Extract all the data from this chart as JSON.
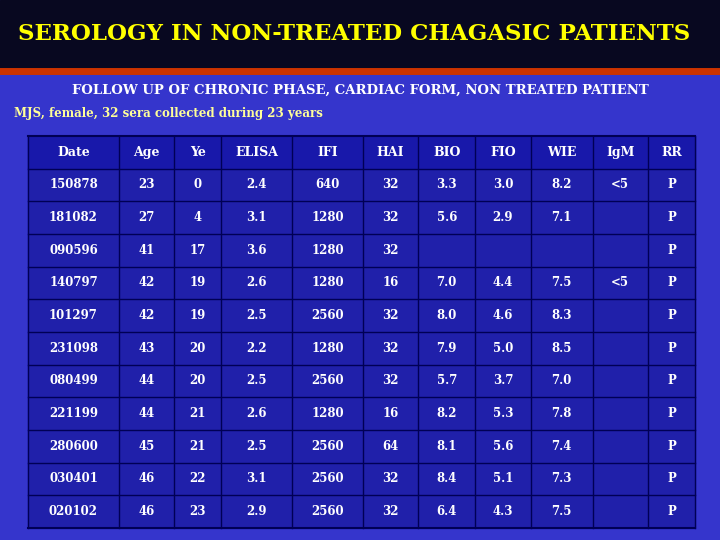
{
  "title": "SEROLOGY IN NON-TREATED CHAGASIC PATIENTS",
  "subtitle": "FOLLOW UP OF CHRONIC PHASE, CARDIAC FORM, NON TREATED PATIENT",
  "caption": "MJS, female, 32 sera collected during 23 years",
  "bg_top_color": "#080820",
  "bg_bottom_color": "#3535cc",
  "title_color": "#ffff00",
  "subtitle_color": "#ffffff",
  "caption_color": "#ffff99",
  "separator_color": "#cc3300",
  "table_header": [
    "Date",
    "Age",
    "Ye",
    "ELISA",
    "IFI",
    "HAI",
    "BIO",
    "FIO",
    "WIE",
    "IgM",
    "RR"
  ],
  "table_data": [
    [
      "150878",
      "23",
      "0",
      "2.4",
      "640",
      "32",
      "3.3",
      "3.0",
      "8.2",
      "<5",
      "P"
    ],
    [
      "181082",
      "27",
      "4",
      "3.1",
      "1280",
      "32",
      "5.6",
      "2.9",
      "7.1",
      "",
      "P"
    ],
    [
      "090596",
      "41",
      "17",
      "3.6",
      "1280",
      "32",
      "",
      "",
      "",
      "",
      "P"
    ],
    [
      "140797",
      "42",
      "19",
      "2.6",
      "1280",
      "16",
      "7.0",
      "4.4",
      "7.5",
      "<5",
      "P"
    ],
    [
      "101297",
      "42",
      "19",
      "2.5",
      "2560",
      "32",
      "8.0",
      "4.6",
      "8.3",
      "",
      "P"
    ],
    [
      "231098",
      "43",
      "20",
      "2.2",
      "1280",
      "32",
      "7.9",
      "5.0",
      "8.5",
      "",
      "P"
    ],
    [
      "080499",
      "44",
      "20",
      "2.5",
      "2560",
      "32",
      "5.7",
      "3.7",
      "7.0",
      "",
      "P"
    ],
    [
      "221199",
      "44",
      "21",
      "2.6",
      "1280",
      "16",
      "8.2",
      "5.3",
      "7.8",
      "",
      "P"
    ],
    [
      "280600",
      "45",
      "21",
      "2.5",
      "2560",
      "64",
      "8.1",
      "5.6",
      "7.4",
      "",
      "P"
    ],
    [
      "030401",
      "46",
      "22",
      "3.1",
      "2560",
      "32",
      "8.4",
      "5.1",
      "7.3",
      "",
      "P"
    ],
    [
      "020102",
      "46",
      "23",
      "2.9",
      "2560",
      "32",
      "6.4",
      "4.3",
      "7.5",
      "",
      "P"
    ]
  ],
  "table_bg_color": "#2020aa",
  "table_border_color": "#000055",
  "table_text_color": "#ffffff",
  "header_bg_color": "#1818aa"
}
